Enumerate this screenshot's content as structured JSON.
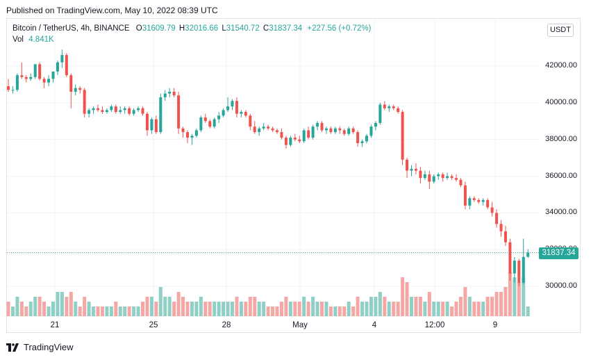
{
  "header": {
    "published": "Published on TradingView.com, May 10, 2022 08:39 UTC"
  },
  "legend": {
    "symbol": "Bitcoin / TetherUS, 4h, BINANCE",
    "o_label": "O",
    "o_value": "31609.79",
    "h_label": "H",
    "h_value": "32016.66",
    "l_label": "L",
    "l_value": "31540.72",
    "c_label": "C",
    "c_value": "31837.34",
    "change": "+227.56 (+0.72%)",
    "vol_label": "Vol",
    "vol_value": "4.841K"
  },
  "currency_button": "USDT",
  "last_price_label": "31837.34",
  "footer": {
    "brand": "TradingView"
  },
  "colors": {
    "up": "#26a69a",
    "down": "#ef5350",
    "up_vol": "#8fcfc6",
    "down_vol": "#f4a7a4",
    "grid": "#f0f3fa"
  },
  "chart_data": {
    "type": "candlestick",
    "symbol": "BTCUSDT",
    "interval": "4h",
    "y_axis_ticks": [
      "30000.00",
      "32000.00",
      "34000.00",
      "36000.00",
      "38000.00",
      "40000.00",
      "42000.00"
    ],
    "x_axis_ticks": [
      "21",
      "25",
      "28",
      "May",
      "4",
      "12:00",
      "9"
    ],
    "ylim": [
      28500,
      43800
    ],
    "last_price": 31837.34,
    "grid": true,
    "candles": [
      [
        40900,
        41300,
        40600,
        40700,
        3
      ],
      [
        40700,
        40900,
        40500,
        40700,
        2
      ],
      [
        40700,
        41600,
        40600,
        41500,
        4
      ],
      [
        41500,
        42200,
        41300,
        41400,
        3
      ],
      [
        41400,
        41500,
        41100,
        41300,
        2
      ],
      [
        41300,
        41600,
        41200,
        41400,
        3
      ],
      [
        41400,
        42100,
        41300,
        42100,
        4
      ],
      [
        42100,
        42200,
        41200,
        41300,
        4
      ],
      [
        41300,
        41400,
        40800,
        41100,
        3
      ],
      [
        41100,
        41500,
        40900,
        41300,
        2
      ],
      [
        41300,
        41700,
        41100,
        41700,
        3
      ],
      [
        41700,
        42300,
        41500,
        42200,
        5
      ],
      [
        42200,
        42900,
        41900,
        42600,
        5
      ],
      [
        42600,
        42700,
        41400,
        41500,
        4
      ],
      [
        41500,
        41600,
        39700,
        40600,
        5
      ],
      [
        40600,
        41000,
        40400,
        40800,
        3
      ],
      [
        40800,
        40900,
        40500,
        40700,
        2
      ],
      [
        40700,
        40800,
        39200,
        39400,
        4
      ],
      [
        39400,
        39700,
        39200,
        39600,
        3
      ],
      [
        39600,
        39800,
        39400,
        39700,
        2
      ],
      [
        39700,
        39900,
        39500,
        39600,
        2
      ],
      [
        39600,
        39800,
        39400,
        39500,
        2
      ],
      [
        39500,
        39700,
        39400,
        39600,
        2
      ],
      [
        39600,
        39900,
        39500,
        39800,
        2
      ],
      [
        39800,
        39900,
        39400,
        39500,
        3
      ],
      [
        39500,
        39800,
        39400,
        39600,
        2
      ],
      [
        39600,
        39800,
        39400,
        39700,
        2
      ],
      [
        39700,
        39800,
        39300,
        39400,
        2
      ],
      [
        39400,
        39700,
        39300,
        39600,
        2
      ],
      [
        39600,
        39800,
        39500,
        39700,
        2
      ],
      [
        39700,
        39800,
        39300,
        39400,
        3
      ],
      [
        39400,
        39500,
        38200,
        38500,
        4
      ],
      [
        38500,
        39200,
        38300,
        39100,
        4
      ],
      [
        39100,
        39300,
        38300,
        38400,
        3
      ],
      [
        38400,
        40500,
        38300,
        40300,
        6
      ],
      [
        40300,
        40700,
        40100,
        40500,
        4
      ],
      [
        40500,
        40800,
        40300,
        40600,
        4
      ],
      [
        40600,
        40800,
        40300,
        40400,
        3
      ],
      [
        40400,
        40600,
        38300,
        38600,
        5
      ],
      [
        38600,
        38700,
        38100,
        38400,
        4
      ],
      [
        38400,
        38500,
        37800,
        38100,
        3
      ],
      [
        38100,
        38300,
        37700,
        38200,
        3
      ],
      [
        38200,
        38600,
        38100,
        38500,
        3
      ],
      [
        38500,
        39300,
        38400,
        39200,
        4
      ],
      [
        39200,
        39400,
        38900,
        39000,
        3
      ],
      [
        39000,
        39100,
        38600,
        38700,
        3
      ],
      [
        38700,
        39200,
        38600,
        39100,
        3
      ],
      [
        39100,
        39500,
        38900,
        39300,
        3
      ],
      [
        39300,
        39700,
        39200,
        39600,
        3
      ],
      [
        39600,
        40300,
        39500,
        39800,
        3
      ],
      [
        39800,
        40200,
        39600,
        40100,
        3
      ],
      [
        40100,
        40300,
        39200,
        39400,
        4
      ],
      [
        39400,
        39600,
        39200,
        39500,
        3
      ],
      [
        39500,
        39600,
        39200,
        39300,
        3
      ],
      [
        39300,
        39400,
        38500,
        38700,
        4
      ],
      [
        38700,
        39000,
        38300,
        38400,
        4
      ],
      [
        38400,
        38700,
        38200,
        38600,
        3
      ],
      [
        38600,
        38900,
        38500,
        38700,
        3
      ],
      [
        38700,
        38800,
        38500,
        38600,
        2
      ],
      [
        38600,
        38700,
        38400,
        38500,
        2
      ],
      [
        38500,
        38600,
        38300,
        38400,
        2
      ],
      [
        38400,
        38600,
        38000,
        38100,
        3
      ],
      [
        38100,
        38200,
        37500,
        37700,
        4
      ],
      [
        37700,
        38200,
        37600,
        38100,
        3
      ],
      [
        38100,
        38300,
        37900,
        38000,
        3
      ],
      [
        38000,
        38200,
        37800,
        37900,
        3
      ],
      [
        37900,
        38600,
        37800,
        38500,
        4
      ],
      [
        38500,
        38700,
        38000,
        38100,
        3
      ],
      [
        38100,
        38800,
        38000,
        38700,
        4
      ],
      [
        38700,
        39000,
        38500,
        38900,
        3
      ],
      [
        38900,
        39000,
        38400,
        38500,
        3
      ],
      [
        38500,
        38700,
        38300,
        38600,
        3
      ],
      [
        38600,
        38700,
        38300,
        38400,
        2
      ],
      [
        38400,
        38700,
        38300,
        38600,
        2
      ],
      [
        38600,
        38700,
        38300,
        38500,
        2
      ],
      [
        38500,
        38600,
        38200,
        38300,
        2
      ],
      [
        38300,
        38700,
        38200,
        38600,
        3
      ],
      [
        38600,
        38700,
        38300,
        38400,
        2
      ],
      [
        38400,
        38500,
        37600,
        37800,
        4
      ],
      [
        37800,
        38000,
        37600,
        37900,
        3
      ],
      [
        37900,
        38300,
        37800,
        38200,
        3
      ],
      [
        38200,
        38800,
        38100,
        38700,
        4
      ],
      [
        38700,
        39000,
        38500,
        38900,
        4
      ],
      [
        38900,
        40000,
        38800,
        39900,
        5
      ],
      [
        39900,
        40100,
        39600,
        39700,
        4
      ],
      [
        39700,
        39900,
        39500,
        39800,
        3
      ],
      [
        39800,
        39900,
        39600,
        39700,
        3
      ],
      [
        39700,
        39800,
        39400,
        39500,
        3
      ],
      [
        39500,
        39600,
        36600,
        36900,
        8
      ],
      [
        36900,
        37000,
        35900,
        36300,
        7
      ],
      [
        36300,
        36600,
        36000,
        36400,
        4
      ],
      [
        36400,
        36700,
        36100,
        36300,
        4
      ],
      [
        36300,
        36500,
        35600,
        35900,
        4
      ],
      [
        35900,
        36300,
        35800,
        36100,
        3
      ],
      [
        36100,
        36300,
        35300,
        35700,
        5
      ],
      [
        35700,
        36100,
        35600,
        36000,
        3
      ],
      [
        36000,
        36200,
        35800,
        36100,
        3
      ],
      [
        36100,
        36200,
        35700,
        35900,
        3
      ],
      [
        35900,
        36200,
        35800,
        36000,
        3
      ],
      [
        36000,
        36100,
        35800,
        35900,
        2
      ],
      [
        35900,
        36100,
        35700,
        35800,
        3
      ],
      [
        35800,
        35900,
        35400,
        35500,
        4
      ],
      [
        35500,
        35700,
        34200,
        34400,
        6
      ],
      [
        34400,
        34900,
        34200,
        34800,
        4
      ],
      [
        34800,
        34900,
        34600,
        34700,
        3
      ],
      [
        34700,
        34800,
        34500,
        34600,
        3
      ],
      [
        34600,
        34800,
        34400,
        34700,
        3
      ],
      [
        34700,
        34800,
        34200,
        34300,
        4
      ],
      [
        34300,
        34600,
        33800,
        34000,
        4
      ],
      [
        34000,
        34200,
        33200,
        33400,
        5
      ],
      [
        33400,
        33600,
        32700,
        33000,
        5
      ],
      [
        33000,
        33300,
        32200,
        32400,
        6
      ],
      [
        32400,
        32600,
        30300,
        30700,
        9
      ],
      [
        30700,
        31600,
        30200,
        31400,
        8
      ],
      [
        31400,
        31500,
        30000,
        30200,
        7
      ],
      [
        30200,
        32600,
        30100,
        31600,
        8
      ],
      [
        31609.79,
        32016.66,
        31540.72,
        31837.34,
        2
      ]
    ]
  }
}
